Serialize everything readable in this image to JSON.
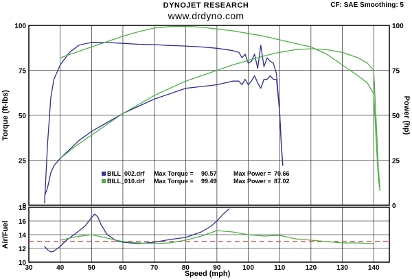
{
  "header": {
    "brand": "DYNOJET RESEARCH",
    "url": "www.drdyno.com",
    "settings": "CF: SAE  Smoothing: 5"
  },
  "colors": {
    "run1": "#2b2f96",
    "run2": "#4fae46",
    "target": "#e23030",
    "grid": "#000000"
  },
  "legend": {
    "rows": [
      {
        "file": "BILL_002.drf",
        "torque_label": "Max Torque =",
        "torque": "90.57",
        "power_label": "Max Power =",
        "power": "70.66",
        "color": "#2b2f96"
      },
      {
        "file": "BILL_010.drf",
        "torque_label": "Max Torque =",
        "torque": "99.49",
        "power_label": "Max Power =",
        "power": "87.02",
        "color": "#4fae46"
      }
    ]
  },
  "chart_data": [
    {
      "type": "line",
      "panel": "main",
      "xlabel": "Speed (mph)",
      "ylabel": "Torque (ft-lbs)",
      "y2label": "Power (hp)",
      "xlim": [
        30,
        145
      ],
      "ylim": [
        0,
        100
      ],
      "y2lim": [
        0,
        100
      ],
      "yticks": [
        "0",
        "25",
        "50",
        "75",
        "100"
      ],
      "y2ticks": [
        "0",
        "25",
        "50",
        "75",
        "100"
      ],
      "grid": "on",
      "series": [
        {
          "name": "BILL_002.drf",
          "quantity": "torque",
          "color": "#2b2f96",
          "x": [
            35,
            36,
            37,
            38,
            40,
            43,
            46,
            50,
            55,
            60,
            65,
            70,
            75,
            80,
            85,
            90,
            95,
            97,
            98,
            99,
            100,
            101,
            102,
            103,
            104,
            105,
            106,
            107,
            108,
            109,
            110,
            110.5,
            111
          ],
          "y": [
            1,
            35,
            60,
            70,
            78,
            85,
            89,
            90.57,
            90.5,
            90,
            89.5,
            89.3,
            88.8,
            88.5,
            88,
            87.3,
            86,
            85,
            82,
            84,
            79,
            80,
            84,
            76,
            89,
            77,
            82,
            80,
            79,
            73,
            52,
            35,
            22
          ]
        },
        {
          "name": "BILL_002.drf",
          "quantity": "power",
          "color": "#2b2f96",
          "x": [
            35,
            36,
            37,
            38,
            40,
            43,
            46,
            50,
            55,
            60,
            65,
            70,
            75,
            80,
            85,
            90,
            95,
            97,
            98,
            99,
            100,
            101,
            102,
            103,
            104,
            105,
            106,
            107,
            108,
            109,
            110,
            110.5,
            111
          ],
          "y": [
            5,
            10,
            18,
            22,
            26,
            31,
            36,
            41,
            46,
            51,
            55,
            59,
            62,
            65,
            66,
            67,
            69,
            69,
            67,
            70,
            67,
            69,
            72,
            68,
            65,
            70,
            70,
            72,
            70,
            70,
            52,
            35,
            22
          ]
        },
        {
          "name": "BILL_010.drf",
          "quantity": "torque",
          "color": "#4fae46",
          "x": [
            40,
            45,
            50,
            55,
            60,
            65,
            70,
            75,
            80,
            85,
            90,
            95,
            100,
            105,
            110,
            115,
            120,
            125,
            130,
            135,
            138,
            140,
            141,
            141.5,
            142
          ],
          "y": [
            82,
            85,
            88,
            91,
            94,
            96.5,
            98.5,
            99.3,
            99.49,
            99,
            98,
            97,
            95.5,
            94,
            92,
            90,
            88,
            84,
            78,
            72,
            68,
            62,
            30,
            15,
            8
          ]
        },
        {
          "name": "BILL_010.drf",
          "quantity": "power",
          "color": "#4fae46",
          "x": [
            40,
            45,
            50,
            55,
            60,
            65,
            70,
            75,
            80,
            85,
            90,
            95,
            100,
            105,
            110,
            115,
            120,
            125,
            130,
            135,
            138,
            140,
            141,
            141.5,
            142
          ],
          "y": [
            26,
            33,
            39,
            45,
            51,
            56,
            61,
            65,
            69,
            72,
            75,
            78,
            80.5,
            83,
            85,
            86.5,
            87.02,
            86.5,
            85,
            82,
            79,
            75,
            40,
            20,
            10
          ]
        }
      ]
    },
    {
      "type": "line",
      "panel": "air-fuel",
      "xlabel": "Speed (mph)",
      "ylabel": "Air/Fuel",
      "xlim": [
        30,
        145
      ],
      "ylim": [
        10,
        18
      ],
      "yticks": [
        "10",
        "12",
        "14",
        "16",
        "18"
      ],
      "xticks": [
        "30",
        "40",
        "50",
        "60",
        "70",
        "80",
        "90",
        "100",
        "110",
        "120",
        "130",
        "140"
      ],
      "grid": "on",
      "reference_line": {
        "y": 13.0,
        "style": "dashed",
        "color": "#e23030"
      },
      "series": [
        {
          "name": "BILL_002.drf",
          "color": "#2b2f96",
          "x": [
            35,
            36,
            37,
            38,
            40,
            42,
            45,
            48,
            50,
            51,
            52,
            53,
            55,
            58,
            60,
            65,
            70,
            75,
            80,
            85,
            88,
            90,
            92,
            94
          ],
          "y": [
            12.3,
            11.8,
            11.5,
            11.6,
            12.3,
            13.2,
            14.2,
            15.3,
            16.5,
            17.0,
            16.6,
            15.5,
            14.0,
            13.1,
            12.9,
            12.7,
            12.9,
            13.3,
            13.6,
            14.4,
            15.2,
            16.0,
            17.0,
            17.8
          ]
        },
        {
          "name": "BILL_010.drf",
          "color": "#4fae46",
          "x": [
            40,
            45,
            50,
            55,
            60,
            65,
            70,
            75,
            80,
            85,
            90,
            95,
            100,
            105,
            110,
            115,
            120,
            125,
            130,
            135,
            140
          ],
          "y": [
            13.2,
            13.7,
            14.0,
            13.5,
            13.0,
            12.8,
            12.7,
            12.8,
            13.2,
            13.8,
            14.6,
            14.4,
            14.0,
            13.8,
            13.9,
            13.4,
            13.2,
            13.0,
            12.8,
            12.8,
            12.7
          ]
        }
      ]
    }
  ]
}
